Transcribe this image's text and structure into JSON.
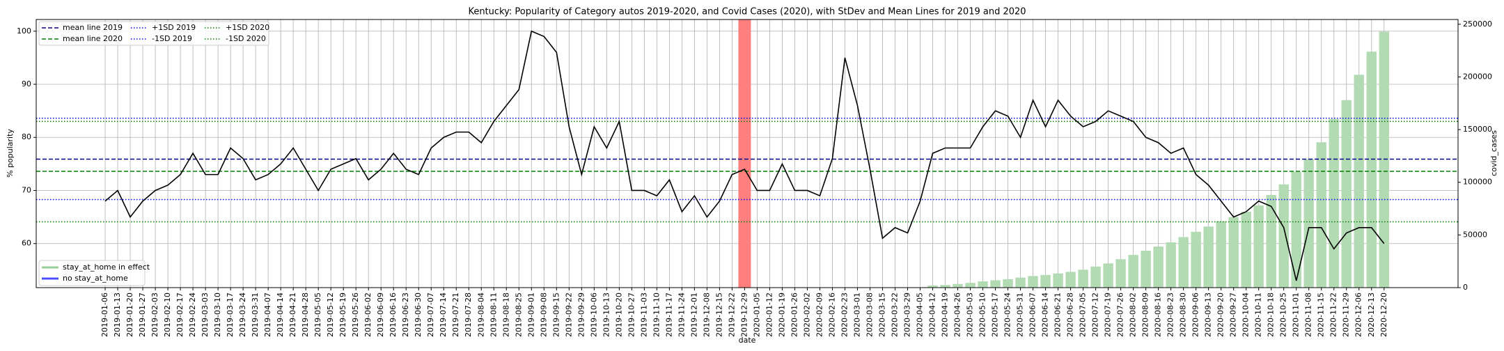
{
  "chart_data": {
    "type": "line",
    "title": "Kentucky: Popularity of Category autos 2019-2020, and Covid Cases (2020), with StDev and Mean Lines for 2019 and 2020",
    "xlabel": "date",
    "ylabel": "% popularity",
    "y2label": "covid_cases",
    "categories": [
      "2019-01-06",
      "2019-01-13",
      "2019-01-20",
      "2019-01-27",
      "2019-02-03",
      "2019-02-10",
      "2019-02-17",
      "2019-02-24",
      "2019-03-03",
      "2019-03-10",
      "2019-03-17",
      "2019-03-24",
      "2019-03-31",
      "2019-04-07",
      "2019-04-14",
      "2019-04-21",
      "2019-04-28",
      "2019-05-05",
      "2019-05-12",
      "2019-05-19",
      "2019-05-26",
      "2019-06-02",
      "2019-06-09",
      "2019-06-16",
      "2019-06-23",
      "2019-06-30",
      "2019-07-07",
      "2019-07-14",
      "2019-07-21",
      "2019-07-28",
      "2019-08-04",
      "2019-08-11",
      "2019-08-18",
      "2019-08-25",
      "2019-09-01",
      "2019-09-08",
      "2019-09-15",
      "2019-09-22",
      "2019-09-29",
      "2019-10-06",
      "2019-10-13",
      "2019-10-20",
      "2019-10-27",
      "2019-11-03",
      "2019-11-10",
      "2019-11-17",
      "2019-11-24",
      "2019-12-01",
      "2019-12-08",
      "2019-12-15",
      "2019-12-22",
      "2019-12-29",
      "2020-01-05",
      "2020-01-12",
      "2020-01-19",
      "2020-01-26",
      "2020-02-02",
      "2020-02-09",
      "2020-02-16",
      "2020-02-23",
      "2020-03-01",
      "2020-03-08",
      "2020-03-15",
      "2020-03-22",
      "2020-03-29",
      "2020-04-05",
      "2020-04-12",
      "2020-04-19",
      "2020-04-26",
      "2020-05-03",
      "2020-05-10",
      "2020-05-17",
      "2020-05-24",
      "2020-05-31",
      "2020-06-07",
      "2020-06-14",
      "2020-06-21",
      "2020-06-28",
      "2020-07-05",
      "2020-07-12",
      "2020-07-19",
      "2020-07-26",
      "2020-08-02",
      "2020-08-09",
      "2020-08-16",
      "2020-08-23",
      "2020-08-30",
      "2020-09-06",
      "2020-09-13",
      "2020-09-20",
      "2020-09-27",
      "2020-10-04",
      "2020-10-11",
      "2020-10-18",
      "2020-10-25",
      "2020-11-01",
      "2020-11-08",
      "2020-11-15",
      "2020-11-22",
      "2020-11-29",
      "2020-12-06",
      "2020-12-13",
      "2020-12-20"
    ],
    "series": [
      {
        "color": "#000000",
        "values": [
          68,
          70,
          65,
          68,
          70,
          71,
          73,
          77,
          73,
          73,
          78,
          76,
          72,
          73,
          75,
          78,
          74,
          70,
          74,
          75,
          76,
          72,
          74,
          77,
          74,
          73,
          78,
          80,
          81,
          81,
          79,
          83,
          86,
          89,
          100,
          99,
          96,
          82,
          73,
          82,
          78,
          83,
          70,
          70,
          69,
          72,
          66,
          69,
          65,
          68,
          73,
          74,
          70,
          70,
          75,
          70,
          70,
          69,
          76,
          95,
          86,
          74,
          61,
          63,
          62,
          68,
          77,
          78,
          78,
          78,
          82,
          85,
          84,
          80,
          87,
          82,
          87,
          84,
          82,
          83,
          85,
          84,
          83,
          80,
          79,
          77,
          78,
          73,
          71,
          68,
          65,
          66,
          68,
          67,
          63,
          53,
          63,
          63,
          59,
          62,
          63,
          63,
          60
        ]
      }
    ],
    "bars": {
      "color": "#b3dbb3",
      "axis": "y2",
      "values": [
        null,
        null,
        null,
        null,
        null,
        null,
        null,
        null,
        null,
        null,
        null,
        null,
        null,
        null,
        null,
        null,
        null,
        null,
        null,
        null,
        null,
        null,
        null,
        null,
        null,
        null,
        null,
        null,
        null,
        null,
        null,
        null,
        null,
        null,
        null,
        null,
        null,
        null,
        null,
        null,
        null,
        null,
        null,
        null,
        null,
        null,
        null,
        null,
        null,
        null,
        null,
        null,
        null,
        null,
        null,
        null,
        null,
        null,
        null,
        null,
        null,
        null,
        null,
        null,
        null,
        null,
        2000,
        2500,
        3500,
        4500,
        6000,
        7000,
        8000,
        9500,
        11000,
        12000,
        13500,
        15000,
        17000,
        20000,
        23000,
        27000,
        31000,
        35000,
        39000,
        43000,
        48000,
        53000,
        58000,
        63000,
        67000,
        72000,
        78000,
        88000,
        98000,
        110000,
        122000,
        138000,
        160000,
        178000,
        202000,
        224000,
        243000
      ]
    },
    "hlines": [
      {
        "name": "mean line 2019",
        "color": "#00008b",
        "style": "dashed",
        "value": 75.9
      },
      {
        "name": "mean line 2020",
        "color": "#008000",
        "style": "dashed",
        "value": 73.6
      },
      {
        "name": "+1SD 2019",
        "color": "#0000ff",
        "style": "dotted",
        "value": 83.6
      },
      {
        "name": "-1SD 2019",
        "color": "#0000ff",
        "style": "dotted",
        "value": 68.3
      },
      {
        "name": "+1SD 2020",
        "color": "#008000",
        "style": "dotted",
        "value": 83.0
      },
      {
        "name": "-1SD 2020",
        "color": "#008000",
        "style": "dotted",
        "value": 64.1
      }
    ],
    "legend2": [
      {
        "name": "stay_at_home in effect",
        "color": "#2ca02c"
      },
      {
        "name": "no stay_at_home",
        "color": "#0000ff"
      }
    ],
    "ylim": [
      51.7,
      102.2
    ],
    "yticks": [
      60,
      70,
      80,
      90,
      100
    ],
    "y2lim": [
      0,
      254500
    ],
    "y2ticks": [
      0,
      50000,
      100000,
      150000,
      200000,
      250000
    ],
    "grid": true
  }
}
